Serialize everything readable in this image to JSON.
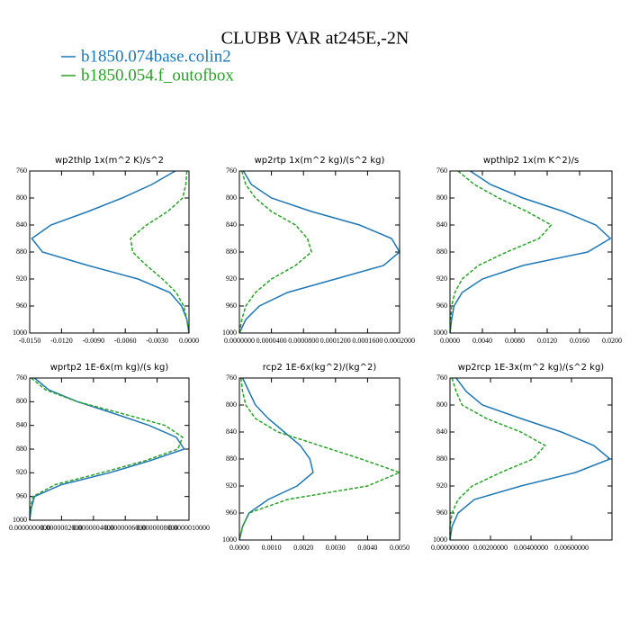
{
  "title": "CLUBB VAR at245E,-2N",
  "chart_data": [
    {
      "type": "line",
      "title": "wp2thlp  1x(m^2 K)/s^2",
      "y": [
        760,
        780,
        800,
        820,
        840,
        860,
        880,
        900,
        920,
        940,
        960,
        980,
        1000
      ],
      "series": [
        {
          "name": "b1850.074base.colin2",
          "color": "#1f77b4",
          "values": [
            -0.0013,
            -0.0035,
            -0.0063,
            -0.0095,
            -0.013,
            -0.0148,
            -0.0138,
            -0.0095,
            -0.0048,
            -0.0018,
            -0.0007,
            -0.0002,
            0
          ]
        },
        {
          "name": "b1850.054.f_outofbox",
          "color": "#2ca02c",
          "values": [
            -0.0002,
            -0.0003,
            -0.0006,
            -0.002,
            -0.004,
            -0.0055,
            -0.0053,
            -0.004,
            -0.0025,
            -0.0012,
            -0.0005,
            -0.0002,
            0
          ]
        }
      ],
      "xlim": [
        -0.015,
        0
      ],
      "xticks": [
        {
          "value": -0.015,
          "label": "-0.0150"
        },
        {
          "value": -0.012,
          "label": "-0.0120"
        },
        {
          "value": -0.009,
          "label": "-0.0090"
        },
        {
          "value": -0.006,
          "label": "-0.0060"
        },
        {
          "value": -0.003,
          "label": "-0.0030"
        },
        {
          "value": 0,
          "label": "0.0000"
        }
      ],
      "ylim": [
        1000,
        760
      ],
      "yticks": [
        760,
        800,
        840,
        880,
        920,
        960,
        1000
      ]
    },
    {
      "type": "line",
      "title": "wp2rtp  1x(m^2 kg)/(s^2 kg)",
      "y": [
        760,
        780,
        800,
        820,
        840,
        860,
        880,
        900,
        920,
        940,
        960,
        980,
        1000
      ],
      "series": [
        {
          "color": "#1f77b4",
          "values": [
            5e-06,
            1.5e-05,
            4e-05,
            9e-05,
            0.00015,
            0.00019,
            0.0002,
            0.00018,
            0.00012,
            6e-05,
            2.5e-05,
            8e-06,
            0
          ]
        },
        {
          "color": "#2ca02c",
          "values": [
            3e-06,
            8e-06,
            2e-05,
            4e-05,
            7e-05,
            8.5e-05,
            9e-05,
            7e-05,
            4e-05,
            2e-05,
            8e-06,
            3e-06,
            0
          ]
        }
      ],
      "xlim": [
        0,
        0.0002
      ],
      "xticks": [
        {
          "value": 0,
          "label": "0.0000000"
        },
        {
          "value": 4e-05,
          "label": "0.0000400"
        },
        {
          "value": 8e-05,
          "label": "0.0000800"
        },
        {
          "value": 0.00012,
          "label": "0.0001200"
        },
        {
          "value": 0.00016,
          "label": "0.0001600"
        },
        {
          "value": 0.0002,
          "label": "0.0002000"
        }
      ],
      "ylim": [
        1000,
        760
      ],
      "yticks": [
        760,
        800,
        840,
        880,
        920,
        960,
        1000
      ]
    },
    {
      "type": "line",
      "title": "wpthlp2  1x(m K^2)/s",
      "y": [
        760,
        780,
        800,
        820,
        840,
        860,
        880,
        900,
        920,
        940,
        960,
        980,
        1000
      ],
      "series": [
        {
          "color": "#1f77b4",
          "values": [
            0.0025,
            0.005,
            0.009,
            0.014,
            0.018,
            0.0198,
            0.017,
            0.009,
            0.004,
            0.0015,
            0.0005,
            0.0002,
            0
          ]
        },
        {
          "color": "#2ca02c",
          "values": [
            0.001,
            0.003,
            0.006,
            0.0095,
            0.0125,
            0.011,
            0.007,
            0.0035,
            0.0015,
            0.0006,
            0.0002,
            0.0001,
            0
          ]
        }
      ],
      "xlim": [
        0,
        0.02
      ],
      "xticks": [
        {
          "value": 0,
          "label": "0.0000"
        },
        {
          "value": 0.004,
          "label": "0.0040"
        },
        {
          "value": 0.008,
          "label": "0.0080"
        },
        {
          "value": 0.012,
          "label": "0.0120"
        },
        {
          "value": 0.016,
          "label": "0.0160"
        },
        {
          "value": 0.02,
          "label": "0.0200"
        }
      ],
      "ylim": [
        1000,
        760
      ],
      "yticks": [
        760,
        800,
        840,
        880,
        920,
        960,
        1000
      ]
    },
    {
      "type": "line",
      "title": "wprtp2  1E-6x(m kg)/(s kg)",
      "y": [
        760,
        780,
        800,
        820,
        840,
        860,
        880,
        900,
        920,
        940,
        960,
        980,
        1000
      ],
      "series": [
        {
          "color": "#1f77b4",
          "values": [
            3e-08,
            1.2e-07,
            3e-07,
            5.3e-07,
            7.5e-07,
            9.2e-07,
            9.7e-07,
            7.5e-07,
            5e-07,
            2e-07,
            3e-08,
            1e-08,
            0
          ]
        },
        {
          "color": "#2ca02c",
          "values": [
            1e-08,
            1e-07,
            3e-07,
            5.8e-07,
            8.5e-07,
            9.6e-07,
            9.3e-07,
            7.2e-07,
            4.5e-07,
            1.6e-07,
            2e-08,
            5e-09,
            0
          ]
        }
      ],
      "xlim": [
        0,
        1e-06
      ],
      "xticks": [
        {
          "value": 0,
          "label": "0.0000000000"
        },
        {
          "value": 2e-07,
          "label": "0.0000002000"
        },
        {
          "value": 4e-07,
          "label": "0.0000004000"
        },
        {
          "value": 6e-07,
          "label": "0.0000006000"
        },
        {
          "value": 8e-07,
          "label": "0.0000008000"
        },
        {
          "value": 1e-06,
          "label": "0.0000010000"
        }
      ],
      "ylim": [
        1000,
        760
      ],
      "yticks": [
        760,
        800,
        840,
        880,
        920,
        960,
        1000
      ]
    },
    {
      "type": "line",
      "title": "rcp2  1E-6x(kg^2)/(kg^2)",
      "y": [
        760,
        780,
        800,
        820,
        840,
        860,
        880,
        900,
        920,
        940,
        960,
        980,
        1000
      ],
      "series": [
        {
          "color": "#1f77b4",
          "values": [
            0.0001,
            0.0003,
            0.0005,
            0.0009,
            0.0014,
            0.0019,
            0.0022,
            0.0023,
            0.0018,
            0.0009,
            0.0003,
            0.0001,
            0
          ]
        },
        {
          "color": "#2ca02c",
          "values": [
            5e-05,
            0.0001,
            0.0002,
            0.0005,
            0.0012,
            0.0025,
            0.0038,
            0.005,
            0.004,
            0.0015,
            0.0003,
            0.0001,
            0
          ]
        }
      ],
      "xlim": [
        0,
        0.005
      ],
      "xticks": [
        {
          "value": 0,
          "label": "0.0000"
        },
        {
          "value": 0.001,
          "label": "0.0010"
        },
        {
          "value": 0.002,
          "label": "0.0020"
        },
        {
          "value": 0.003,
          "label": "0.0030"
        },
        {
          "value": 0.004,
          "label": "0.0040"
        },
        {
          "value": 0.005,
          "label": "0.0050"
        }
      ],
      "ylim": [
        1000,
        760
      ],
      "yticks": [
        760,
        800,
        840,
        880,
        920,
        960,
        1000
      ]
    },
    {
      "type": "line",
      "title": "wp2rcp  1E-3x(m^2 kg)/(s^2 kg)",
      "y": [
        760,
        780,
        800,
        820,
        840,
        860,
        880,
        900,
        920,
        940,
        960,
        980,
        1000
      ],
      "series": [
        {
          "color": "#1f77b4",
          "values": [
            0.0003,
            0.0008,
            0.0016,
            0.0035,
            0.0055,
            0.0071,
            0.0079,
            0.0062,
            0.0035,
            0.0012,
            0.0004,
            0.0001,
            0
          ]
        },
        {
          "color": "#2ca02c",
          "values": [
            0.0001,
            0.0003,
            0.0006,
            0.0018,
            0.0035,
            0.0047,
            0.0041,
            0.0025,
            0.0011,
            0.0004,
            0.0001,
            0,
            0
          ]
        }
      ],
      "xlim": [
        0,
        0.008
      ],
      "xticks": [
        {
          "value": 0,
          "label": "0.000000000"
        },
        {
          "value": 0.002,
          "label": "0.00200000"
        },
        {
          "value": 0.004,
          "label": "0.00400000"
        },
        {
          "value": 0.006,
          "label": "0.00600000"
        }
      ],
      "ylim": [
        1000,
        760
      ],
      "yticks": [
        760,
        800,
        840,
        880,
        920,
        960,
        1000
      ]
    }
  ]
}
